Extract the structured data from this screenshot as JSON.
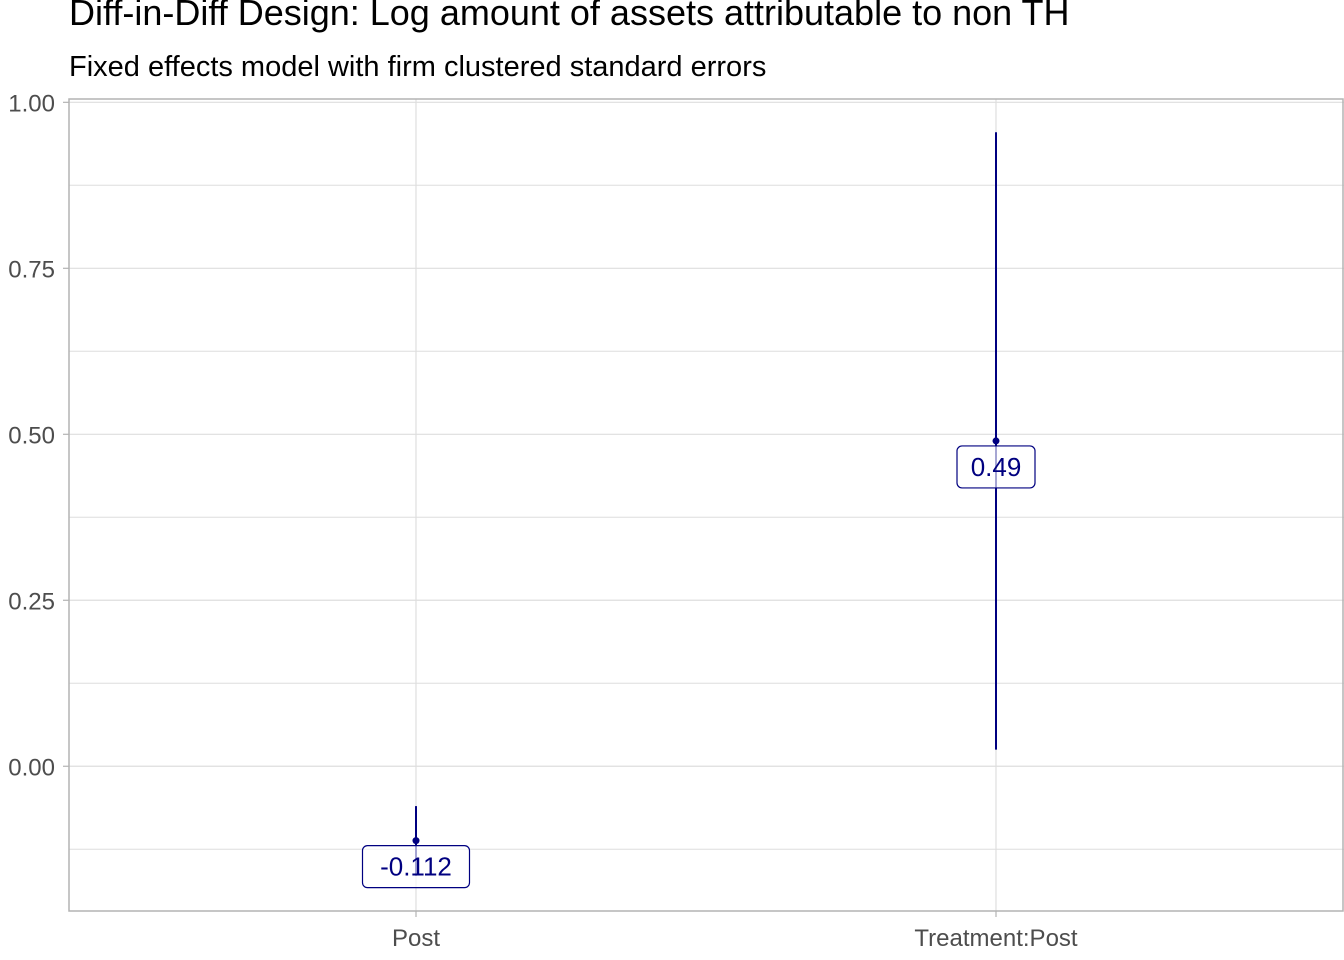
{
  "title": "Diff-in-Diff Design: Log amount of assets attributable to non TH",
  "subtitle": "Fixed effects model with firm clustered standard errors",
  "colors": {
    "accent": "#000080",
    "grid": "#dedede",
    "axis": "#b3b3b3",
    "tick_text": "#4d4d4d"
  },
  "chart_data": {
    "type": "scatter",
    "title": "Diff-in-Diff Design: Log amount of assets attributable to non TH",
    "subtitle": "Fixed effects model with firm clustered standard errors",
    "xlabel": "",
    "ylabel": "",
    "categories": [
      "Post",
      "Treatment:Post"
    ],
    "estimates": [
      -0.112,
      0.49
    ],
    "conf_low": [
      -0.165,
      0.025
    ],
    "conf_high": [
      -0.06,
      0.955
    ],
    "labels": [
      "-0.112",
      "0.49"
    ],
    "ylim": [
      -0.218,
      1.005
    ],
    "yticks": [
      0.0,
      0.25,
      0.5,
      0.75,
      1.0
    ],
    "ytick_labels": [
      "0.00",
      "0.25",
      "0.50",
      "0.75",
      "1.00"
    ],
    "grid": true,
    "legend": "none"
  }
}
